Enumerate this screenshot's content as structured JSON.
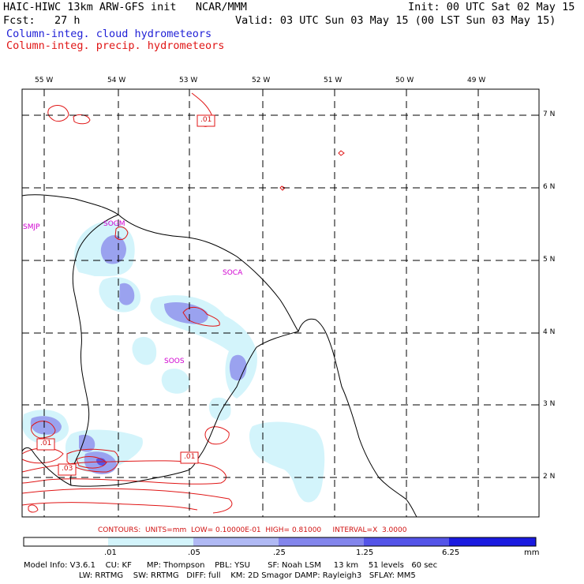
{
  "header": {
    "line1_left": "HAIC-HIWC 13km ARW-GFS init   NCAR/MMM",
    "line1_right": "Init: 00 UTC Sat 02 May 15",
    "line2_left": "Fcst:   27 h",
    "line2_right": "Valid: 03 UTC Sun 03 May 15 (00 LST Sun 03 May 15)",
    "legend_cloud": "Column-integ. cloud hydrometeors",
    "legend_precip": "Column-integ. precip. hydrometeors"
  },
  "map": {
    "lon_labels": [
      "55 W",
      "54 W",
      "53 W",
      "52 W",
      "51 W",
      "50 W",
      "49 W"
    ],
    "lat_labels": [
      "7 N",
      "6 N",
      "5 N",
      "4 N",
      "3 N",
      "2 N"
    ],
    "stations": [
      "SMJP",
      "SOGM",
      "SOCA",
      "SOOS"
    ],
    "contour_labels": [
      ".01",
      ".01",
      ".03",
      ".01"
    ]
  },
  "footer": {
    "contours_info": "CONTOURS:  UNITS=mm  LOW= 0.10000E-01  HIGH= 0.81000     INTERVAL=X  3.0000",
    "scale_labels": [
      ".01",
      ".05",
      ".25",
      "1.25",
      "6.25",
      "mm"
    ],
    "scale_colors": [
      "#ffffff",
      "#d3f4fb",
      "#b0b9f4",
      "#8385ec",
      "#5454e8",
      "#1a1ae0"
    ],
    "model_info_line1": "Model Info: V3.6.1    CU: KF      MP: Thompson    PBL: YSU       SF: Noah LSM     13 km    51 levels   60 sec",
    "model_info_line2": "                      LW: RRTMG    SW: RRTMG   DIFF: full    KM: 2D Smagor DAMP: Rayleigh3   SFLAY: MM5"
  }
}
